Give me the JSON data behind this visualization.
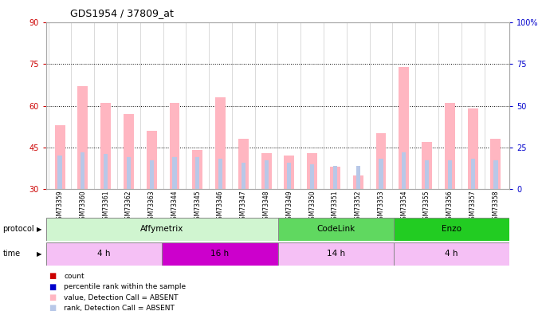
{
  "title": "GDS1954 / 37809_at",
  "samples": [
    "GSM73359",
    "GSM73360",
    "GSM73361",
    "GSM73362",
    "GSM73363",
    "GSM73344",
    "GSM73345",
    "GSM73346",
    "GSM73347",
    "GSM73348",
    "GSM73349",
    "GSM73350",
    "GSM73351",
    "GSM73352",
    "GSM73353",
    "GSM73354",
    "GSM73355",
    "GSM73356",
    "GSM73357",
    "GSM73358"
  ],
  "absent_values": [
    53,
    67,
    61,
    57,
    51,
    61,
    44,
    63,
    48,
    43,
    42,
    43,
    38,
    35,
    50,
    74,
    47,
    61,
    59,
    48
  ],
  "absent_ranks_pct": [
    20,
    22,
    21,
    19,
    17,
    19,
    19,
    18,
    16,
    17,
    16,
    15,
    14,
    14,
    18,
    22,
    17,
    17,
    18,
    17
  ],
  "ylim_left": [
    30,
    90
  ],
  "ylim_right": [
    0,
    100
  ],
  "yticks_left": [
    30,
    45,
    60,
    75,
    90
  ],
  "yticks_right": [
    0,
    25,
    50,
    75,
    100
  ],
  "grid_vals": [
    45,
    60,
    75
  ],
  "protocol_groups": [
    {
      "label": "Affymetrix",
      "start": 0,
      "end": 10,
      "color": "#d0f5d0"
    },
    {
      "label": "CodeLink",
      "start": 10,
      "end": 15,
      "color": "#60d860"
    },
    {
      "label": "Enzo",
      "start": 15,
      "end": 20,
      "color": "#22cc22"
    }
  ],
  "time_groups": [
    {
      "label": "4 h",
      "start": 0,
      "end": 5,
      "color": "#f5c0f5"
    },
    {
      "label": "16 h",
      "start": 5,
      "end": 10,
      "color": "#cc00cc"
    },
    {
      "label": "14 h",
      "start": 10,
      "end": 15,
      "color": "#f5c0f5"
    },
    {
      "label": "4 h",
      "start": 15,
      "end": 20,
      "color": "#f5c0f5"
    }
  ],
  "absent_value_color": "#ffb6c1",
  "absent_rank_color": "#b8c8e8",
  "legend_items": [
    {
      "label": "count",
      "color": "#cc0000"
    },
    {
      "label": "percentile rank within the sample",
      "color": "#0000cc"
    },
    {
      "label": "value, Detection Call = ABSENT",
      "color": "#ffb6c1"
    },
    {
      "label": "rank, Detection Call = ABSENT",
      "color": "#b8c8e8"
    }
  ],
  "left_axis_color": "#cc0000",
  "right_axis_color": "#0000cc",
  "background_color": "#ffffff",
  "plot_bg": "#ffffff"
}
